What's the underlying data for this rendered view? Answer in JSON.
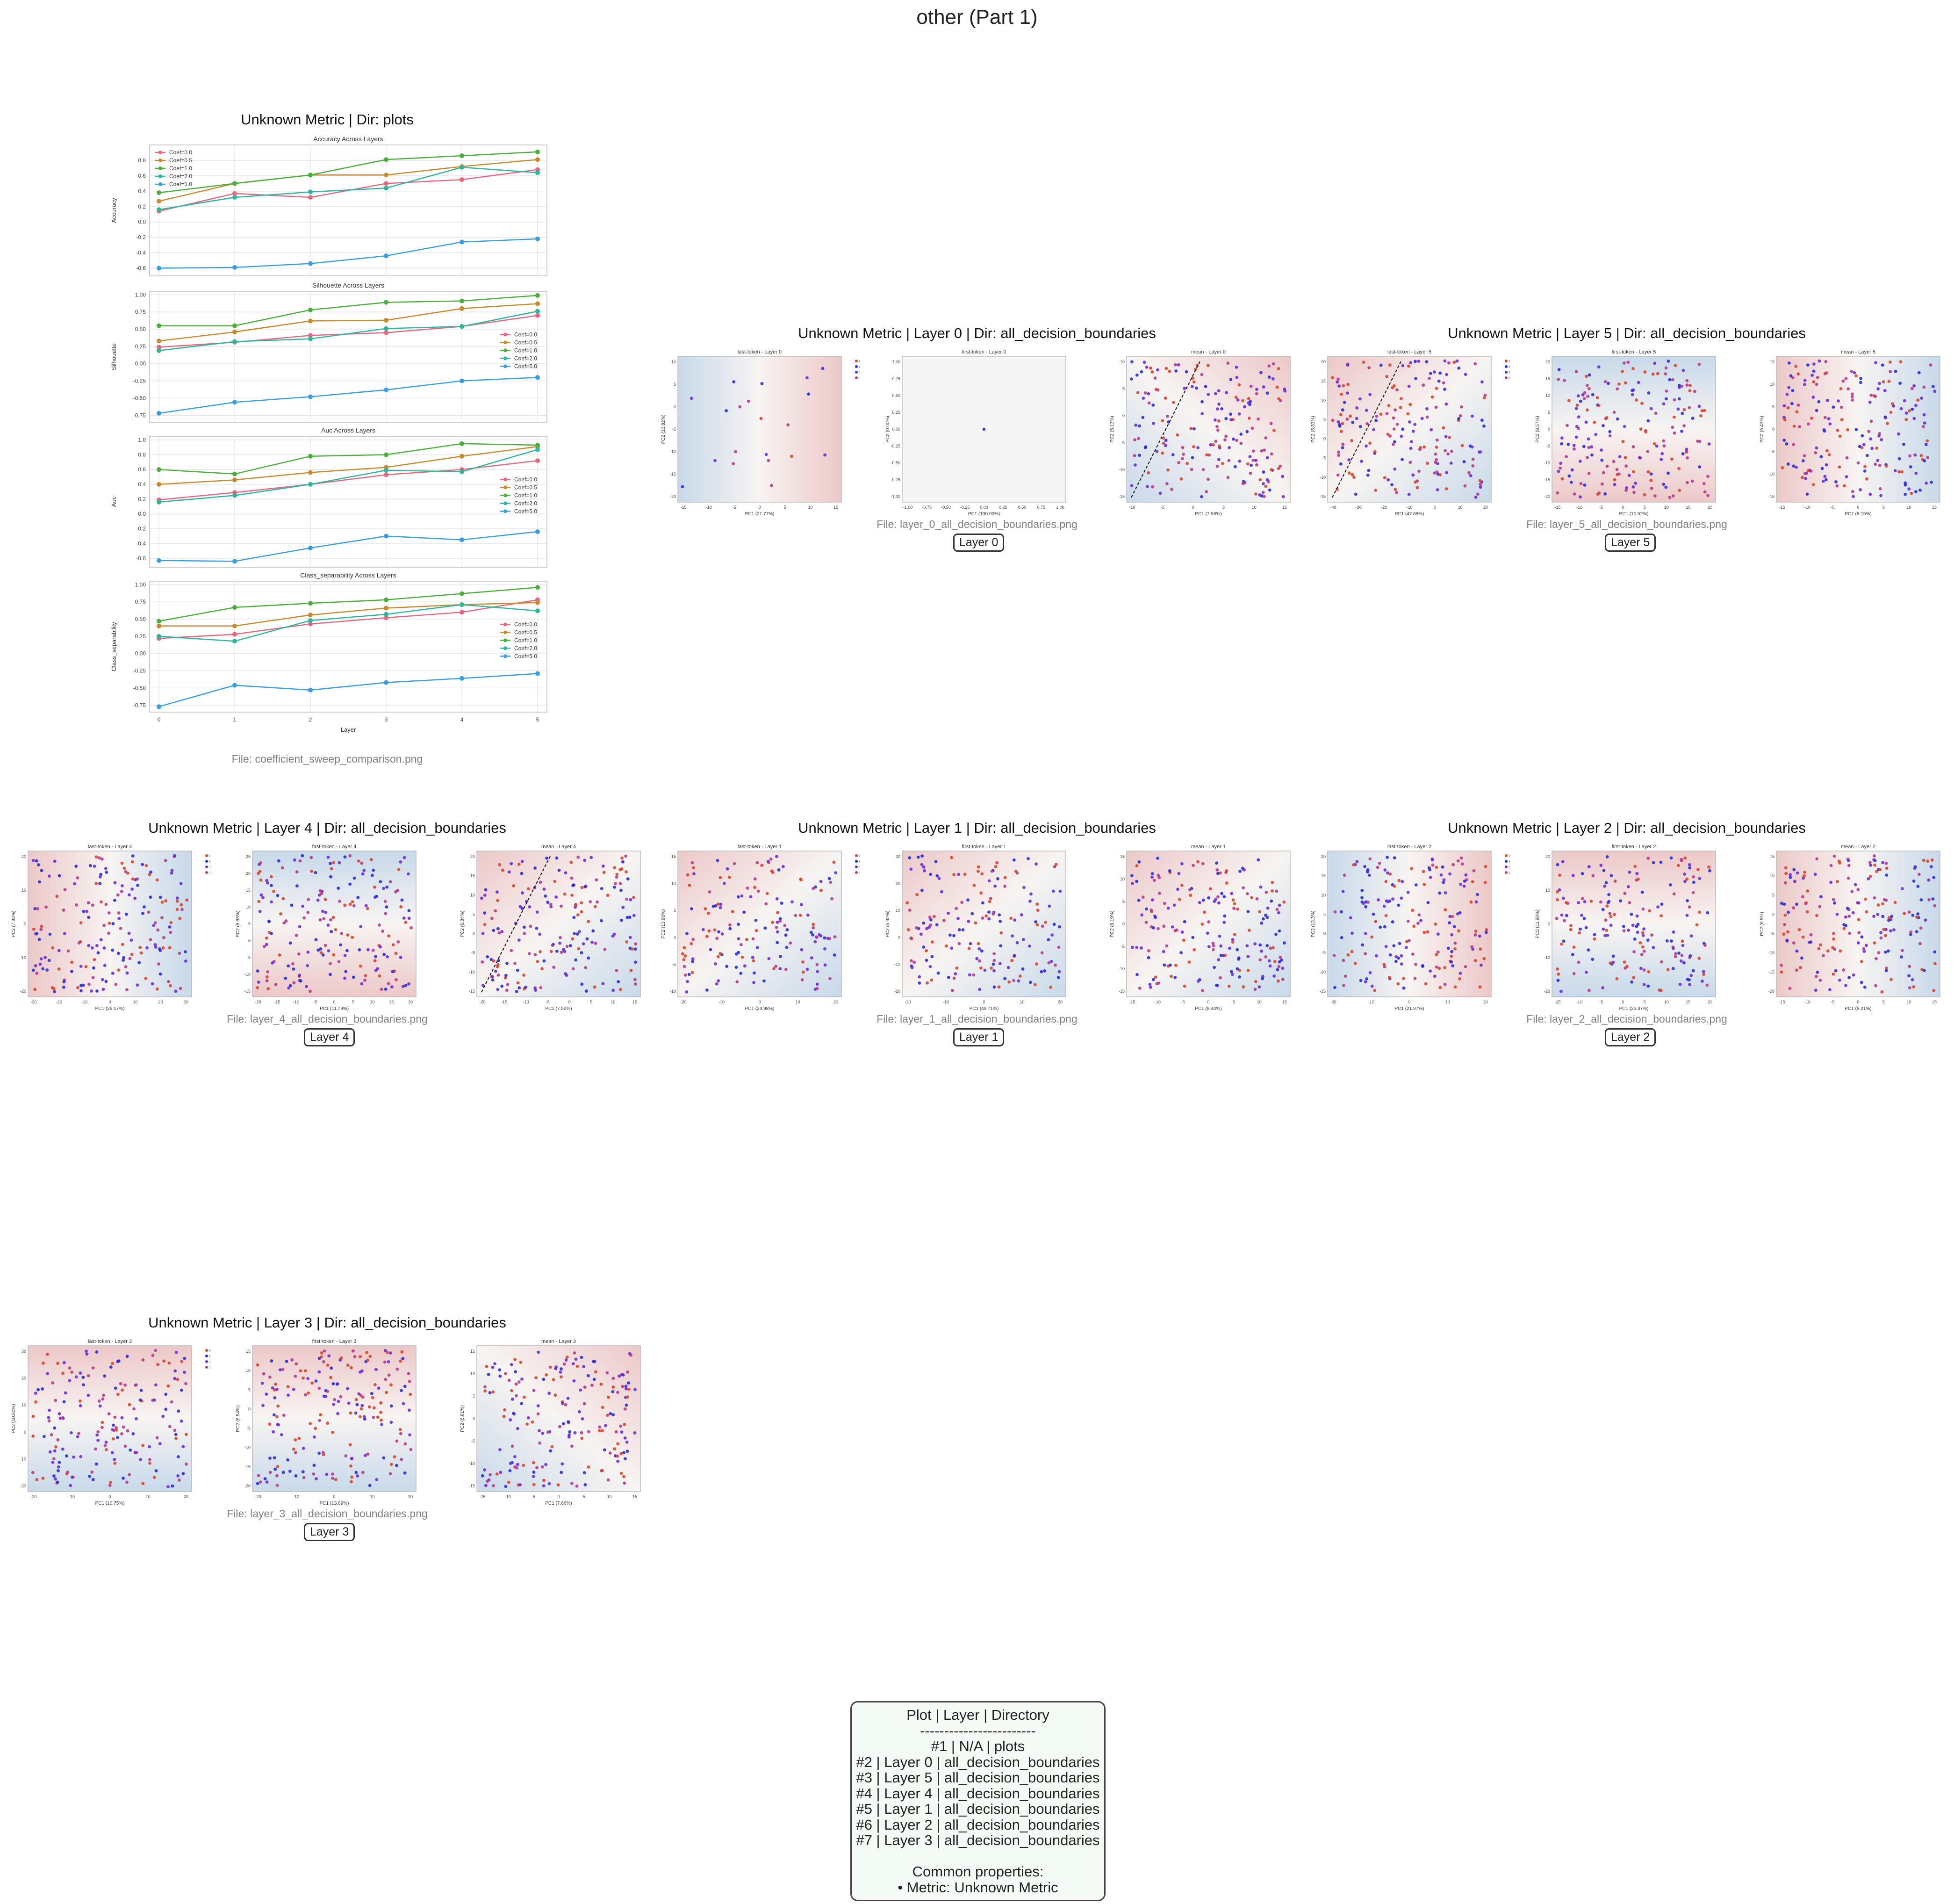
{
  "page_title": "other (Part 1)",
  "cells": [
    {
      "title": "Unknown Metric | Dir: plots",
      "file": "File: coefficient_sweep_comparison.png"
    },
    {
      "title": "Unknown Metric | Layer 0 | Dir: all_decision_boundaries",
      "file": "File: layer_0_all_decision_boundaries.png",
      "badge": "Layer 0"
    },
    {
      "title": "Unknown Metric | Layer 5 | Dir: all_decision_boundaries",
      "file": "File: layer_5_all_decision_boundaries.png",
      "badge": "Layer 5"
    },
    {
      "title": "Unknown Metric | Layer 4 | Dir: all_decision_boundaries",
      "file": "File: layer_4_all_decision_boundaries.png",
      "badge": "Layer 4"
    },
    {
      "title": "Unknown Metric | Layer 1 | Dir: all_decision_boundaries",
      "file": "File: layer_1_all_decision_boundaries.png",
      "badge": "Layer 1"
    },
    {
      "title": "Unknown Metric | Layer 2 | Dir: all_decision_boundaries",
      "file": "File: layer_2_all_decision_boundaries.png",
      "badge": "Layer 2"
    },
    {
      "title": "Unknown Metric | Layer 3 | Dir: all_decision_boundaries",
      "file": "File: layer_3_all_decision_boundaries.png",
      "badge": "Layer 3"
    }
  ],
  "summary": {
    "lines": [
      "Plot | Layer | Directory",
      "------------------------",
      "#1 | N/A | plots",
      "#2 | Layer 0 | all_decision_boundaries",
      "#3 | Layer 5 | all_decision_boundaries",
      "#4 | Layer 4 | all_decision_boundaries",
      "#5 | Layer 1 | all_decision_boundaries",
      "#6 | Layer 2 | all_decision_boundaries",
      "#7 | Layer 3 | all_decision_boundaries",
      "",
      "Common properties:",
      "• Metric: Unknown Metric"
    ]
  },
  "colors": {
    "coef_0.0": "#e8677e",
    "coef_0.5": "#c98a2e",
    "coef_1.0": "#4caf3c",
    "coef_2.0": "#2fb69e",
    "coef_5.0": "#3a9fe0",
    "hate_yes": "#d9442b",
    "hate_no": "#2b2bd9",
    "safe_yes": "#6b2bd9",
    "safe_no": "#b43c8c",
    "region_a": "#c8d9ea",
    "region_b": "#ecc8c8"
  },
  "chart_data": [
    {
      "type": "line",
      "title": "Accuracy Across Layers",
      "ylabel": "Accuracy",
      "xlabel": "",
      "x": [
        0,
        1,
        2,
        3,
        4,
        5
      ],
      "ylim": [
        -0.7,
        1.0
      ],
      "yticks": [
        "0.8",
        "0.6",
        "0.4",
        "0.2",
        "0.0",
        "-0.2",
        "-0.4",
        "-0.6"
      ],
      "legend_placement": "top-left",
      "series": [
        {
          "name": "Coef=0.0",
          "values": [
            0.14,
            0.37,
            0.32,
            0.5,
            0.55,
            0.68
          ]
        },
        {
          "name": "Coef=0.5",
          "values": [
            0.27,
            0.5,
            0.61,
            0.61,
            0.72,
            0.81
          ]
        },
        {
          "name": "Coef=1.0",
          "values": [
            0.38,
            0.5,
            0.61,
            0.81,
            0.86,
            0.91
          ]
        },
        {
          "name": "Coef=2.0",
          "values": [
            0.16,
            0.32,
            0.39,
            0.44,
            0.71,
            0.64
          ]
        },
        {
          "name": "Coef=5.0",
          "values": [
            -0.6,
            -0.59,
            -0.54,
            -0.44,
            -0.26,
            -0.22
          ]
        }
      ]
    },
    {
      "type": "line",
      "title": "Silhouette Across Layers",
      "ylabel": "Silhouette",
      "xlabel": "",
      "x": [
        0,
        1,
        2,
        3,
        4,
        5
      ],
      "ylim": [
        -0.85,
        1.05
      ],
      "yticks": [
        "1.00",
        "0.75",
        "0.50",
        "0.25",
        "0.00",
        "-0.25",
        "-0.50",
        "-0.75"
      ],
      "legend_placement": "center-right",
      "series": [
        {
          "name": "Coef=0.0",
          "values": [
            0.24,
            0.31,
            0.41,
            0.45,
            0.54,
            0.7
          ]
        },
        {
          "name": "Coef=0.5",
          "values": [
            0.33,
            0.46,
            0.62,
            0.63,
            0.8,
            0.87
          ]
        },
        {
          "name": "Coef=1.0",
          "values": [
            0.55,
            0.55,
            0.78,
            0.89,
            0.91,
            0.99
          ]
        },
        {
          "name": "Coef=2.0",
          "values": [
            0.19,
            0.32,
            0.36,
            0.51,
            0.54,
            0.76
          ]
        },
        {
          "name": "Coef=5.0",
          "values": [
            -0.72,
            -0.56,
            -0.48,
            -0.38,
            -0.25,
            -0.2
          ]
        }
      ]
    },
    {
      "type": "line",
      "title": "Auc Across Layers",
      "ylabel": "Auc",
      "xlabel": "",
      "x": [
        0,
        1,
        2,
        3,
        4,
        5
      ],
      "ylim": [
        -0.72,
        1.05
      ],
      "yticks": [
        "1.0",
        "0.8",
        "0.6",
        "0.4",
        "0.2",
        "0.0",
        "-0.2",
        "-0.4",
        "-0.6"
      ],
      "legend_placement": "center-right",
      "series": [
        {
          "name": "Coef=0.0",
          "values": [
            0.19,
            0.29,
            0.4,
            0.53,
            0.6,
            0.72
          ]
        },
        {
          "name": "Coef=0.5",
          "values": [
            0.4,
            0.46,
            0.56,
            0.63,
            0.78,
            0.91
          ]
        },
        {
          "name": "Coef=1.0",
          "values": [
            0.6,
            0.54,
            0.78,
            0.8,
            0.95,
            0.93
          ]
        },
        {
          "name": "Coef=2.0",
          "values": [
            0.16,
            0.25,
            0.4,
            0.59,
            0.57,
            0.87
          ]
        },
        {
          "name": "Coef=5.0",
          "values": [
            -0.63,
            -0.64,
            -0.46,
            -0.3,
            -0.35,
            -0.24
          ]
        }
      ]
    },
    {
      "type": "line",
      "title": "Class_separability Across Layers",
      "ylabel": "Class_separability",
      "xlabel": "Layer",
      "x": [
        0,
        1,
        2,
        3,
        4,
        5
      ],
      "xticks": [
        "0",
        "1",
        "2",
        "3",
        "4",
        "5"
      ],
      "ylim": [
        -0.85,
        1.05
      ],
      "yticks": [
        "1.00",
        "0.75",
        "0.50",
        "0.25",
        "0.00",
        "-0.25",
        "-0.50",
        "-0.75"
      ],
      "legend_placement": "center-right",
      "series": [
        {
          "name": "Coef=0.0",
          "values": [
            0.22,
            0.28,
            0.43,
            0.52,
            0.6,
            0.78
          ]
        },
        {
          "name": "Coef=0.5",
          "values": [
            0.4,
            0.4,
            0.56,
            0.66,
            0.71,
            0.74
          ]
        },
        {
          "name": "Coef=1.0",
          "values": [
            0.47,
            0.67,
            0.73,
            0.78,
            0.87,
            0.96
          ]
        },
        {
          "name": "Coef=2.0",
          "values": [
            0.25,
            0.18,
            0.48,
            0.57,
            0.71,
            0.62
          ]
        },
        {
          "name": "Coef=5.0",
          "values": [
            -0.77,
            -0.46,
            -0.53,
            -0.42,
            -0.36,
            -0.29
          ]
        }
      ]
    },
    {
      "type": "scatter",
      "panels": [
        {
          "cell": 1,
          "title": "last-token - Layer 0",
          "xlabel": "PC1 (21.77%)",
          "ylabel": "PC2 (10.82%)",
          "xticks": [
            "-15",
            "-10",
            "-5",
            "0",
            "5",
            "10",
            "15"
          ],
          "yticks": [
            "10",
            "5",
            "0",
            "-5",
            "-10",
            "-15",
            "-20"
          ],
          "gradient": "lr-blue-red",
          "points": 20,
          "legend": [
            "Hate Yes",
            "Hate No",
            "Safe Yes",
            "Safe No"
          ]
        },
        {
          "cell": 1,
          "title": "first-token - Layer 0",
          "xlabel": "PC1 (100.00%)",
          "ylabel": "PC2 (0.00%)",
          "xticks": [
            "-1.00",
            "-0.75",
            "-0.50",
            "-0.25",
            "0.00",
            "0.25",
            "0.50",
            "0.75",
            "1.00"
          ],
          "yticks": [
            "1.00",
            "0.75",
            "0.50",
            "0.25",
            "0.00",
            "-0.25",
            "-0.50",
            "-0.75",
            "-1.00"
          ],
          "gradient": "none",
          "points": 1
        },
        {
          "cell": 1,
          "title": "mean - Layer 0",
          "xlabel": "PC1 (7.98%)",
          "ylabel": "PC2 (5.13%)",
          "xticks": [
            "-10",
            "-5",
            "0",
            "5",
            "10",
            "15"
          ],
          "yticks": [
            "10",
            "5",
            "0",
            "-5",
            "-10",
            "-15"
          ],
          "gradient": "diag-blue-red",
          "points": 190,
          "boundary": true
        },
        {
          "cell": 2,
          "title": "last-token - Layer 5",
          "xlabel": "PC1 (47.88%)",
          "ylabel": "PC2 (5.83%)",
          "xticks": [
            "-40",
            "-30",
            "-20",
            "-10",
            "0",
            "10",
            "20"
          ],
          "yticks": [
            "20",
            "15",
            "10",
            "5",
            "0",
            "-5",
            "-10",
            "-15"
          ],
          "gradient": "br-blue-red",
          "points": 180,
          "boundary": true,
          "legend": [
            "Hate Yes",
            "Hate No",
            "Safe Yes",
            "Safe No"
          ]
        },
        {
          "cell": 2,
          "title": "first-token - Layer 5",
          "xlabel": "PC1 (10.52%)",
          "ylabel": "PC2 (8.57%)",
          "xticks": [
            "-15",
            "-10",
            "-5",
            "0",
            "5",
            "10",
            "15",
            "20"
          ],
          "yticks": [
            "20",
            "15",
            "10",
            "5",
            "0",
            "-5",
            "-10",
            "-15",
            "-20"
          ],
          "gradient": "tb-blue-red",
          "points": 190
        },
        {
          "cell": 2,
          "title": "mean - Layer 5",
          "xlabel": "PC1 (8.15%)",
          "ylabel": "PC2 (6.43%)",
          "xticks": [
            "-15",
            "-10",
            "-5",
            "0",
            "5",
            "10",
            "15"
          ],
          "yticks": [
            "15",
            "10",
            "5",
            "0",
            "-5",
            "-10",
            "-15"
          ],
          "gradient": "lr-red-blue",
          "points": 190
        },
        {
          "cell": 3,
          "title": "last-token - Layer 4",
          "xlabel": "PC1 (26.17%)",
          "ylabel": "PC2 (7.92%)",
          "xticks": [
            "-30",
            "-20",
            "-10",
            "0",
            "10",
            "20",
            "30"
          ],
          "yticks": [
            "20",
            "10",
            "0",
            "-10",
            "-20"
          ],
          "gradient": "lr-red-blue",
          "points": 190,
          "legend": [
            "Hate Yes",
            "Hate No",
            "Safe Yes",
            "Safe No"
          ]
        },
        {
          "cell": 3,
          "title": "first-token - Layer 4",
          "xlabel": "PC1 (11.79%)",
          "ylabel": "PC2 (8.83%)",
          "xticks": [
            "-20",
            "-15",
            "-10",
            "-5",
            "0",
            "5",
            "10",
            "15",
            "20"
          ],
          "yticks": [
            "25",
            "20",
            "15",
            "10",
            "5",
            "0",
            "-5",
            "-10",
            "-15"
          ],
          "gradient": "tb-blue-red",
          "points": 190
        },
        {
          "cell": 3,
          "title": "mean - Layer 4",
          "xlabel": "PC1 (7.52%)",
          "ylabel": "PC2 (6.84%)",
          "xticks": [
            "-20",
            "-15",
            "-10",
            "-5",
            "0",
            "5",
            "10",
            "15"
          ],
          "yticks": [
            "20",
            "15",
            "10",
            "5",
            "0",
            "-5",
            "-10",
            "-15"
          ],
          "gradient": "diag-red-blue",
          "points": 190,
          "boundary": true
        },
        {
          "cell": 4,
          "title": "last-token - Layer 1",
          "xlabel": "PC1 (24.98%)",
          "ylabel": "PC2 (13.96%)",
          "xticks": [
            "-20",
            "-10",
            "0",
            "10",
            "20"
          ],
          "yticks": [
            "15",
            "10",
            "5",
            "0",
            "-5",
            "-10"
          ],
          "gradient": "diag-red-blue",
          "points": 160,
          "legend": [
            "Hate Yes",
            "Hate No",
            "Safe Yes",
            "Safe No"
          ]
        },
        {
          "cell": 4,
          "title": "first-token - Layer 1",
          "xlabel": "PC1 (49.71%)",
          "ylabel": "PC2 (5.92%)",
          "xticks": [
            "-20",
            "-10",
            "0",
            "10",
            "20"
          ],
          "yticks": [
            "30",
            "20",
            "10",
            "0",
            "-10",
            "-20"
          ],
          "gradient": "diag-red-blue",
          "points": 170
        },
        {
          "cell": 4,
          "title": "mean - Layer 1",
          "xlabel": "PC1 (8.44%)",
          "ylabel": "PC2 (6.19%)",
          "xticks": [
            "-15",
            "-10",
            "-5",
            "0",
            "5",
            "10",
            "15"
          ],
          "yticks": [
            "15",
            "10",
            "5",
            "0",
            "-5",
            "-10",
            "-15"
          ],
          "gradient": "diag-red-blue",
          "points": 190
        },
        {
          "cell": 5,
          "title": "last-token - Layer 2",
          "xlabel": "PC1 (21.97%)",
          "ylabel": "PC2 (13.3%)",
          "xticks": [
            "-20",
            "-10",
            "0",
            "10",
            "20"
          ],
          "yticks": [
            "20",
            "15",
            "10",
            "5",
            "0",
            "-5",
            "-10",
            "-15"
          ],
          "gradient": "lr-blue-red",
          "points": 180,
          "legend": [
            "Hate Yes",
            "Hate No",
            "Safe Yes",
            "Safe No"
          ]
        },
        {
          "cell": 5,
          "title": "first-token - Layer 2",
          "xlabel": "PC1 (25.37%)",
          "ylabel": "PC2 (11.98%)",
          "xticks": [
            "-15",
            "-10",
            "-5",
            "0",
            "5",
            "10",
            "15",
            "20"
          ],
          "yticks": [
            "20",
            "10",
            "0",
            "-10",
            "-20"
          ],
          "gradient": "tb-red-blue",
          "points": 180
        },
        {
          "cell": 5,
          "title": "mean - Layer 2",
          "xlabel": "PC1 (8.21%)",
          "ylabel": "PC2 (6.9%)",
          "xticks": [
            "-15",
            "-10",
            "-5",
            "0",
            "5",
            "10",
            "15"
          ],
          "yticks": [
            "15",
            "10",
            "5",
            "0",
            "-5",
            "-10",
            "-15",
            "-20"
          ],
          "gradient": "lr-red-blue",
          "points": 190
        },
        {
          "cell": 6,
          "title": "last-token - Layer 3",
          "xlabel": "PC1 (10.75%)",
          "ylabel": "PC2 (10.80%)",
          "xticks": [
            "-20",
            "-10",
            "0",
            "10",
            "20"
          ],
          "yticks": [
            "30",
            "20",
            "10",
            "0",
            "-10",
            "-20"
          ],
          "gradient": "tb-red-blue",
          "points": 180,
          "legend": [
            "Hate Yes",
            "Hate No",
            "Safe Yes",
            "Safe No"
          ]
        },
        {
          "cell": 6,
          "title": "first-token - Layer 3",
          "xlabel": "PC1 (13.69%)",
          "ylabel": "PC2 (8.54%)",
          "xticks": [
            "-20",
            "-10",
            "0",
            "10",
            "20"
          ],
          "yticks": [
            "15",
            "10",
            "5",
            "0",
            "-5",
            "-10",
            "-15",
            "-20"
          ],
          "gradient": "tb-red-blue",
          "points": 190
        },
        {
          "cell": 6,
          "title": "mean - Layer 3",
          "xlabel": "PC1 (7.66%)",
          "ylabel": "PC2 (6.61%)",
          "xticks": [
            "-15",
            "-10",
            "-5",
            "0",
            "5",
            "10",
            "15"
          ],
          "yticks": [
            "15",
            "10",
            "5",
            "0",
            "-5",
            "-10",
            "-15"
          ],
          "gradient": "diag-blue-red",
          "points": 190
        }
      ]
    }
  ]
}
